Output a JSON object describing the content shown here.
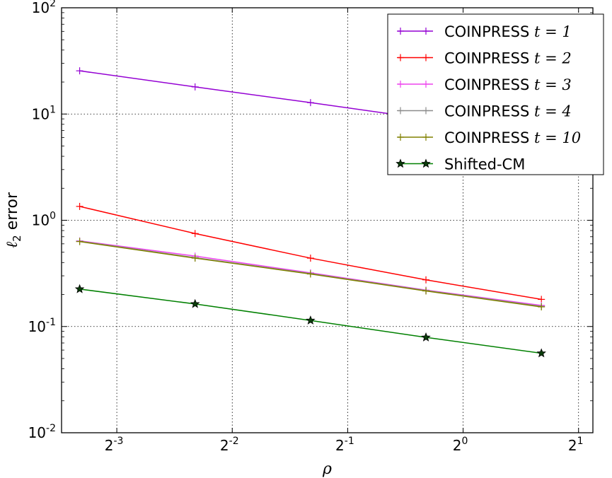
{
  "chart_data": {
    "type": "line",
    "title": "",
    "xlabel": "ρ",
    "ylabel": "ℓ2 error",
    "x_scale": "log2",
    "y_scale": "log10",
    "xlim": [
      0.0897,
      2.18
    ],
    "ylim": [
      0.01,
      100
    ],
    "grid": true,
    "legend_position": "top-right",
    "x_ticks": [
      {
        "base": "2",
        "exp": "-3",
        "value": 0.125
      },
      {
        "base": "2",
        "exp": "-2",
        "value": 0.25
      },
      {
        "base": "2",
        "exp": "-1",
        "value": 0.5
      },
      {
        "base": "2",
        "exp": "0",
        "value": 1
      },
      {
        "base": "2",
        "exp": "1",
        "value": 2
      }
    ],
    "y_ticks": [
      {
        "base": "10",
        "exp": "-2",
        "value": 0.01
      },
      {
        "base": "10",
        "exp": "-1",
        "value": 0.1
      },
      {
        "base": "10",
        "exp": "0",
        "value": 1
      },
      {
        "base": "10",
        "exp": "1",
        "value": 10
      },
      {
        "base": "10",
        "exp": "2",
        "value": 100
      }
    ],
    "x": [
      0.1,
      0.2,
      0.4,
      0.8,
      1.6
    ],
    "series": [
      {
        "name": "COINPRESS t = 1",
        "label_text": "COINPRESS",
        "label_math": "t = 1",
        "color": "#9400d3",
        "marker": "plus",
        "values": [
          25.5,
          18.0,
          12.8,
          9.0,
          6.4
        ]
      },
      {
        "name": "COINPRESS t = 2",
        "label_text": "COINPRESS",
        "label_math": "t = 2",
        "color": "#ff0000",
        "marker": "plus",
        "values": [
          1.35,
          0.75,
          0.44,
          0.275,
          0.18
        ]
      },
      {
        "name": "COINPRESS t = 3",
        "label_text": "COINPRESS",
        "label_math": "t = 3",
        "color": "#ee44ee",
        "marker": "plus",
        "values": [
          0.64,
          0.46,
          0.32,
          0.22,
          0.158
        ]
      },
      {
        "name": "COINPRESS t = 4",
        "label_text": "COINPRESS",
        "label_math": "t = 4",
        "color": "#8c8c8c",
        "marker": "plus",
        "values": [
          0.635,
          0.445,
          0.315,
          0.218,
          0.155
        ]
      },
      {
        "name": "COINPRESS t = 10",
        "label_text": "COINPRESS",
        "label_math": "t = 10",
        "color": "#808000",
        "marker": "plus",
        "values": [
          0.63,
          0.44,
          0.312,
          0.216,
          0.153
        ]
      },
      {
        "name": "Shifted-CM",
        "label_text": "Shifted-CM",
        "label_math": "",
        "color": "#008000",
        "marker": "star",
        "values": [
          0.225,
          0.163,
          0.114,
          0.079,
          0.056
        ]
      }
    ]
  }
}
